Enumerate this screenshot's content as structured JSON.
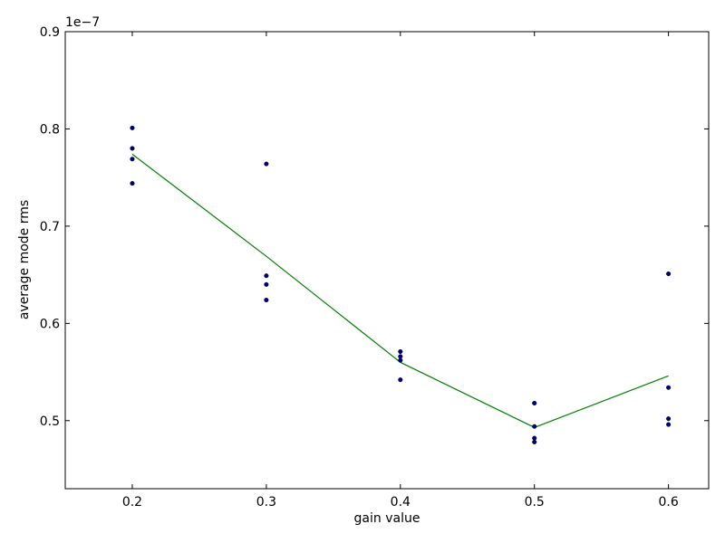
{
  "chart_data": {
    "type": "scatter",
    "title": "",
    "xlabel": "gain value",
    "ylabel": "average mode rms",
    "y_offset_label": "1e−7",
    "xlim": [
      0.15,
      0.63
    ],
    "ylim": [
      0.43,
      0.9
    ],
    "x_ticks": [
      0.2,
      0.3,
      0.4,
      0.5,
      0.6
    ],
    "x_tick_labels": [
      "0.2",
      "0.3",
      "0.4",
      "0.5",
      "0.6"
    ],
    "y_ticks": [
      0.5,
      0.6,
      0.7,
      0.8,
      0.9
    ],
    "y_tick_labels": [
      "0.5",
      "0.6",
      "0.7",
      "0.8",
      "0.9"
    ],
    "grid": false,
    "series": [
      {
        "kind": "scatter",
        "color": "#000080",
        "points": [
          {
            "x": 0.2,
            "y": 0.801
          },
          {
            "x": 0.2,
            "y": 0.78
          },
          {
            "x": 0.2,
            "y": 0.769
          },
          {
            "x": 0.2,
            "y": 0.744
          },
          {
            "x": 0.3,
            "y": 0.764
          },
          {
            "x": 0.3,
            "y": 0.649
          },
          {
            "x": 0.3,
            "y": 0.64
          },
          {
            "x": 0.3,
            "y": 0.624
          },
          {
            "x": 0.4,
            "y": 0.571
          },
          {
            "x": 0.4,
            "y": 0.566
          },
          {
            "x": 0.4,
            "y": 0.562
          },
          {
            "x": 0.4,
            "y": 0.542
          },
          {
            "x": 0.5,
            "y": 0.518
          },
          {
            "x": 0.5,
            "y": 0.494
          },
          {
            "x": 0.5,
            "y": 0.482
          },
          {
            "x": 0.5,
            "y": 0.478
          },
          {
            "x": 0.6,
            "y": 0.651
          },
          {
            "x": 0.6,
            "y": 0.534
          },
          {
            "x": 0.6,
            "y": 0.502
          },
          {
            "x": 0.6,
            "y": 0.496
          }
        ]
      },
      {
        "kind": "line",
        "color": "#008000",
        "points": [
          {
            "x": 0.2,
            "y": 0.774
          },
          {
            "x": 0.3,
            "y": 0.669
          },
          {
            "x": 0.4,
            "y": 0.56
          },
          {
            "x": 0.5,
            "y": 0.493
          },
          {
            "x": 0.6,
            "y": 0.546
          }
        ]
      }
    ]
  }
}
